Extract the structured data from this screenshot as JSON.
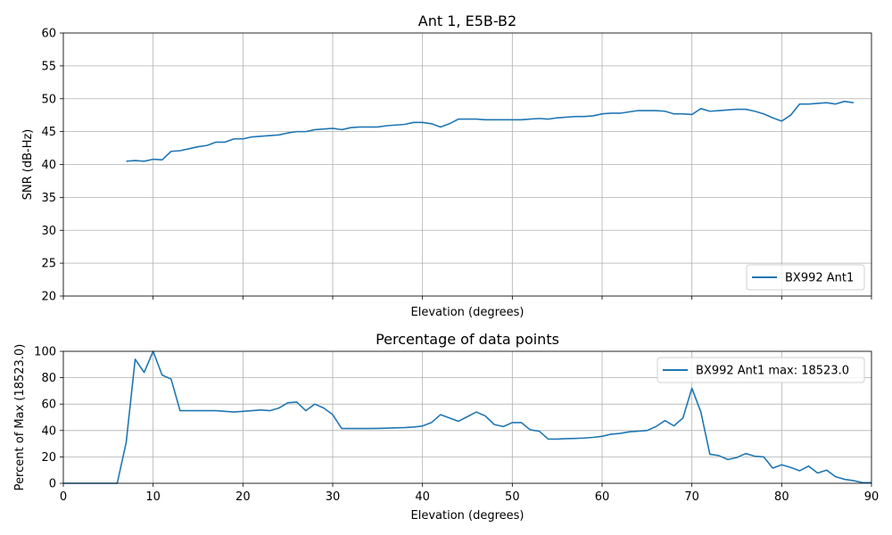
{
  "chart_data": [
    {
      "type": "line",
      "title": "Ant 1, E5B-B2",
      "xlabel": "Elevation (degrees)",
      "ylabel": "SNR (dB-Hz)",
      "xlim": [
        0,
        90
      ],
      "ylim": [
        20,
        60
      ],
      "xticks": [
        0,
        10,
        20,
        30,
        40,
        50,
        60,
        70,
        80,
        90
      ],
      "yticks": [
        20,
        25,
        30,
        35,
        40,
        45,
        50,
        55,
        60
      ],
      "xtick_labels_visible": false,
      "grid": true,
      "legend_position": "lower-right",
      "series": [
        {
          "name": "BX992 Ant1",
          "color": "#1f77b4",
          "x": [
            7,
            8,
            9,
            10,
            11,
            12,
            13,
            14,
            15,
            16,
            17,
            18,
            19,
            20,
            21,
            22,
            23,
            24,
            25,
            26,
            27,
            28,
            29,
            30,
            31,
            32,
            33,
            34,
            35,
            36,
            37,
            38,
            39,
            40,
            41,
            42,
            43,
            44,
            45,
            46,
            47,
            48,
            49,
            50,
            51,
            52,
            53,
            54,
            55,
            56,
            57,
            58,
            59,
            60,
            61,
            62,
            63,
            64,
            65,
            66,
            67,
            68,
            69,
            70,
            71,
            72,
            73,
            74,
            75,
            76,
            77,
            78,
            79,
            80,
            81,
            82,
            83,
            84,
            85,
            86,
            87,
            88
          ],
          "y": [
            40.5,
            40.6,
            40.5,
            40.8,
            40.7,
            42.0,
            42.1,
            42.4,
            42.7,
            42.9,
            43.4,
            43.4,
            43.9,
            43.9,
            44.2,
            44.3,
            44.4,
            44.5,
            44.8,
            45.0,
            45.0,
            45.3,
            45.4,
            45.5,
            45.3,
            45.6,
            45.7,
            45.7,
            45.7,
            45.9,
            46.0,
            46.1,
            46.4,
            46.4,
            46.2,
            45.7,
            46.2,
            46.9,
            46.9,
            46.9,
            46.8,
            46.8,
            46.8,
            46.8,
            46.8,
            46.9,
            47.0,
            46.9,
            47.1,
            47.2,
            47.3,
            47.3,
            47.4,
            47.7,
            47.8,
            47.8,
            48.0,
            48.2,
            48.2,
            48.2,
            48.1,
            47.7,
            47.7,
            47.6,
            48.5,
            48.1,
            48.2,
            48.3,
            48.4,
            48.4,
            48.1,
            47.7,
            47.1,
            46.6,
            47.5,
            49.2,
            49.2,
            49.3,
            49.4,
            49.2,
            49.6,
            49.4
          ]
        }
      ]
    },
    {
      "type": "line",
      "title": "Percentage of data points",
      "xlabel": "Elevation (degrees)",
      "ylabel": "Percent of Max (18523.0)",
      "xlim": [
        0,
        90
      ],
      "ylim": [
        0,
        100
      ],
      "xticks": [
        0,
        10,
        20,
        30,
        40,
        50,
        60,
        70,
        80,
        90
      ],
      "yticks": [
        0,
        20,
        40,
        60,
        80,
        100
      ],
      "xtick_labels_visible": true,
      "grid": true,
      "legend_position": "upper-right",
      "series": [
        {
          "name": "BX992 Ant1 max: 18523.0",
          "color": "#1f77b4",
          "x": [
            0,
            1,
            2,
            3,
            4,
            5,
            6,
            7,
            8,
            9,
            10,
            11,
            12,
            13,
            14,
            15,
            16,
            17,
            18,
            19,
            20,
            21,
            22,
            23,
            24,
            25,
            26,
            27,
            28,
            29,
            30,
            31,
            32,
            33,
            34,
            35,
            36,
            37,
            38,
            39,
            40,
            41,
            42,
            43,
            44,
            45,
            46,
            47,
            48,
            49,
            50,
            51,
            52,
            53,
            54,
            55,
            56,
            57,
            58,
            59,
            60,
            61,
            62,
            63,
            64,
            65,
            66,
            67,
            68,
            69,
            70,
            71,
            72,
            73,
            74,
            75,
            76,
            77,
            78,
            79,
            80,
            81,
            82,
            83,
            84,
            85,
            86,
            87,
            88,
            89,
            90
          ],
          "y": [
            0,
            0,
            0,
            0,
            0,
            0,
            0,
            31,
            94,
            84,
            100,
            82,
            79,
            55,
            55,
            55,
            55,
            55,
            54.5,
            54,
            54.5,
            55,
            55.5,
            55,
            57,
            61,
            61.5,
            55,
            60,
            57,
            52,
            41.5,
            41.5,
            41.5,
            41.5,
            41.6,
            41.8,
            42,
            42.2,
            42.6,
            43.4,
            46,
            52,
            49.5,
            47,
            50.5,
            54,
            51,
            44.5,
            43,
            46,
            46,
            40.5,
            39.5,
            33.5,
            33.5,
            33.8,
            34,
            34.3,
            34.8,
            35.6,
            37.2,
            37.8,
            39,
            39.5,
            40,
            43,
            47.5,
            43.5,
            49.5,
            72,
            54,
            22,
            21,
            18,
            19.5,
            22.5,
            20.5,
            20,
            11.5,
            14,
            12,
            9.5,
            13,
            7.8,
            10,
            5,
            3,
            2,
            0.5,
            0.5
          ]
        }
      ]
    }
  ]
}
